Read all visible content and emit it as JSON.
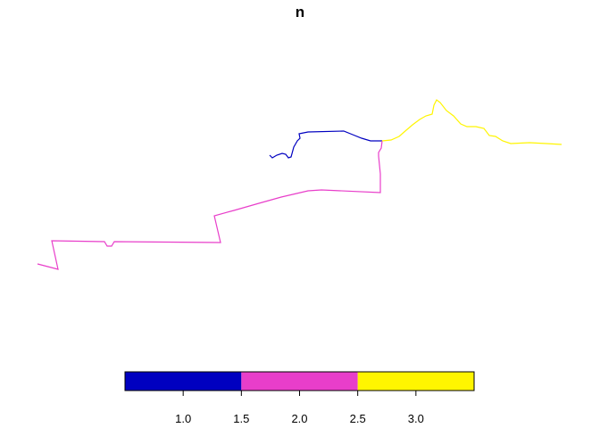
{
  "title": "n",
  "features": [
    {
      "n": 1,
      "color": "#0000C0"
    },
    {
      "n": 2,
      "color": "#E83ECA"
    },
    {
      "n": 3,
      "color": "#FFF500"
    }
  ],
  "legend": {
    "range": [
      0.5,
      3.5
    ],
    "breaks": [
      0.5,
      1.5,
      2.5,
      3.5
    ],
    "colors": [
      "#0000C0",
      "#E83ECA",
      "#FFF500"
    ],
    "ticks": [
      "1.0",
      "1.5",
      "2.0",
      "2.5",
      "3.0"
    ],
    "tick_values": [
      1.0,
      1.5,
      2.0,
      2.5,
      3.0
    ]
  }
}
